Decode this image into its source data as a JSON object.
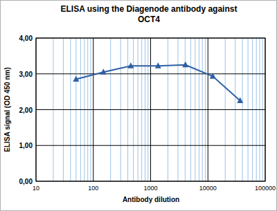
{
  "chart_data": {
    "type": "line",
    "title": "ELISA using the Diagenode antibody against OCT4",
    "x_label": "Antibody dilution",
    "y_label": "ELISA signal (OD 450 nm)",
    "x": [
      50,
      150,
      450,
      1350,
      4050,
      12150,
      36450
    ],
    "values": [
      2.85,
      3.05,
      3.22,
      3.22,
      3.25,
      2.93,
      2.25
    ],
    "color": "#2e5fa3",
    "marker": "triangle",
    "line_style": "solid",
    "log": "x",
    "grid": true,
    "xlim": [
      10,
      100000
    ],
    "xticks": [
      10,
      100,
      1000,
      10000,
      100000
    ],
    "ylim": [
      0,
      4
    ],
    "yticks": [
      {
        "value": 0,
        "label": "0,00"
      },
      {
        "value": 1,
        "label": "1,00"
      },
      {
        "value": 2,
        "label": "2,00"
      },
      {
        "value": 3,
        "label": "3,00"
      },
      {
        "value": 4,
        "label": "4,00"
      }
    ]
  }
}
